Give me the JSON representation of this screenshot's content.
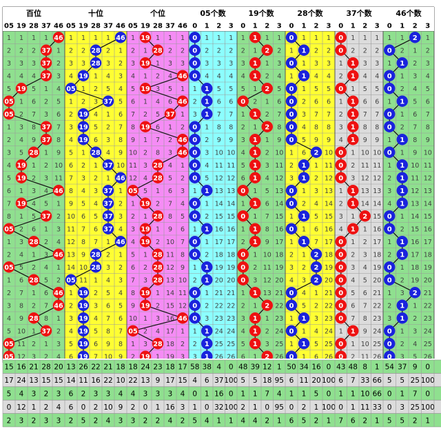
{
  "colors": {
    "green": "#8fe08f",
    "yellow": "#ffff33",
    "pink": "#f58cf5",
    "cyan": "#8cffff",
    "gray": "#dcdcdc",
    "red_ball": "#ee1111",
    "blue_ball": "#1a22dd",
    "grid": "#9a9a9a",
    "text_light": "#404040"
  },
  "groups": [
    {
      "name": "百位",
      "columns": [
        "05",
        "19",
        "28",
        "37",
        "46"
      ]
    },
    {
      "name": "十位",
      "columns": [
        "05",
        "19",
        "28",
        "37",
        "46"
      ]
    },
    {
      "name": "个位",
      "columns": [
        "05",
        "19",
        "28",
        "37",
        "46"
      ]
    },
    {
      "name": "05个数",
      "columns": [
        "0",
        "1",
        "2",
        "3"
      ]
    },
    {
      "name": "19个数",
      "columns": [
        "0",
        "1",
        "2",
        "3"
      ]
    },
    {
      "name": "28个数",
      "columns": [
        "0",
        "1",
        "2",
        "3"
      ]
    },
    {
      "name": "37个数",
      "columns": [
        "0",
        "1",
        "2",
        "3"
      ]
    },
    {
      "name": "46个数",
      "columns": [
        "0",
        "1",
        "2",
        "3"
      ]
    }
  ],
  "chart_data": {
    "type": "table",
    "draws": [
      [
        46,
        46,
        19,
        0,
        1,
        0,
        0,
        2
      ],
      [
        37,
        28,
        28,
        0,
        2,
        1,
        0,
        0
      ],
      [
        37,
        28,
        19,
        0,
        1,
        0,
        1,
        1
      ],
      [
        37,
        19,
        46,
        0,
        1,
        1,
        1,
        0
      ],
      [
        19,
        5,
        19,
        1,
        2,
        0,
        0,
        0
      ],
      [
        5,
        37,
        46,
        1,
        0,
        0,
        1,
        1
      ],
      [
        5,
        19,
        37,
        1,
        1,
        0,
        1,
        0
      ],
      [
        37,
        19,
        19,
        0,
        2,
        0,
        1,
        0
      ],
      [
        37,
        19,
        46,
        0,
        1,
        0,
        1,
        1
      ],
      [
        28,
        28,
        46,
        0,
        1,
        2,
        0,
        0
      ],
      [
        19,
        37,
        28,
        0,
        1,
        1,
        0,
        1
      ],
      [
        19,
        46,
        28,
        0,
        1,
        1,
        0,
        1
      ],
      [
        46,
        37,
        5,
        1,
        0,
        0,
        1,
        1
      ],
      [
        19,
        37,
        19,
        0,
        1,
        0,
        1,
        1
      ],
      [
        37,
        37,
        28,
        0,
        0,
        1,
        2,
        0
      ],
      [
        5,
        37,
        19,
        1,
        1,
        0,
        1,
        0
      ],
      [
        28,
        46,
        19,
        0,
        1,
        1,
        0,
        1
      ],
      [
        46,
        28,
        28,
        0,
        0,
        2,
        0,
        1
      ],
      [
        5,
        28,
        28,
        1,
        0,
        2,
        0,
        0
      ],
      [
        28,
        5,
        28,
        1,
        0,
        2,
        0,
        0
      ],
      [
        46,
        19,
        19,
        0,
        1,
        0,
        0,
        2
      ],
      [
        46,
        19,
        19,
        0,
        2,
        0,
        0,
        1
      ],
      [
        28,
        19,
        46,
        0,
        1,
        1,
        0,
        1
      ],
      [
        37,
        19,
        5,
        1,
        1,
        0,
        1,
        0
      ],
      [
        5,
        19,
        28,
        1,
        1,
        1,
        0,
        0
      ],
      [
        5,
        19,
        19,
        1,
        2,
        0,
        0,
        0
      ]
    ],
    "stats": [
      [
        15,
        16,
        21,
        28,
        20,
        13,
        26,
        22,
        21,
        18,
        18,
        24,
        23,
        18,
        17,
        58,
        38,
        4,
        0,
        48,
        39,
        12,
        1,
        50,
        34,
        16,
        0,
        43,
        48,
        8,
        1,
        54,
        37,
        9,
        0
      ],
      [
        17,
        24,
        13,
        15,
        15,
        14,
        11,
        16,
        22,
        10,
        22,
        13,
        9,
        17,
        15,
        4,
        6,
        37,
        100,
        5,
        5,
        18,
        95,
        6,
        11,
        20,
        100,
        6,
        7,
        33,
        66,
        5,
        5,
        25,
        100
      ],
      [
        5,
        4,
        3,
        2,
        3,
        6,
        2,
        3,
        3,
        4,
        4,
        3,
        3,
        3,
        4,
        0,
        1,
        16,
        0,
        1,
        1,
        7,
        4,
        1,
        1,
        5,
        0,
        1,
        1,
        10,
        66,
        0,
        1,
        7,
        0
      ],
      [
        0,
        12,
        1,
        2,
        4,
        6,
        0,
        2,
        10,
        9,
        2,
        0,
        1,
        16,
        3,
        1,
        0,
        32,
        100,
        2,
        1,
        0,
        95,
        0,
        2,
        1,
        100,
        0,
        1,
        11,
        33,
        0,
        3,
        25,
        100
      ],
      [
        2,
        3,
        2,
        3,
        3,
        2,
        5,
        2,
        4,
        3,
        3,
        2,
        2,
        4,
        2,
        5,
        4,
        1,
        1,
        4,
        4,
        2,
        1,
        6,
        5,
        2,
        1,
        7,
        6,
        2,
        1,
        5,
        5,
        2,
        1
      ]
    ]
  }
}
